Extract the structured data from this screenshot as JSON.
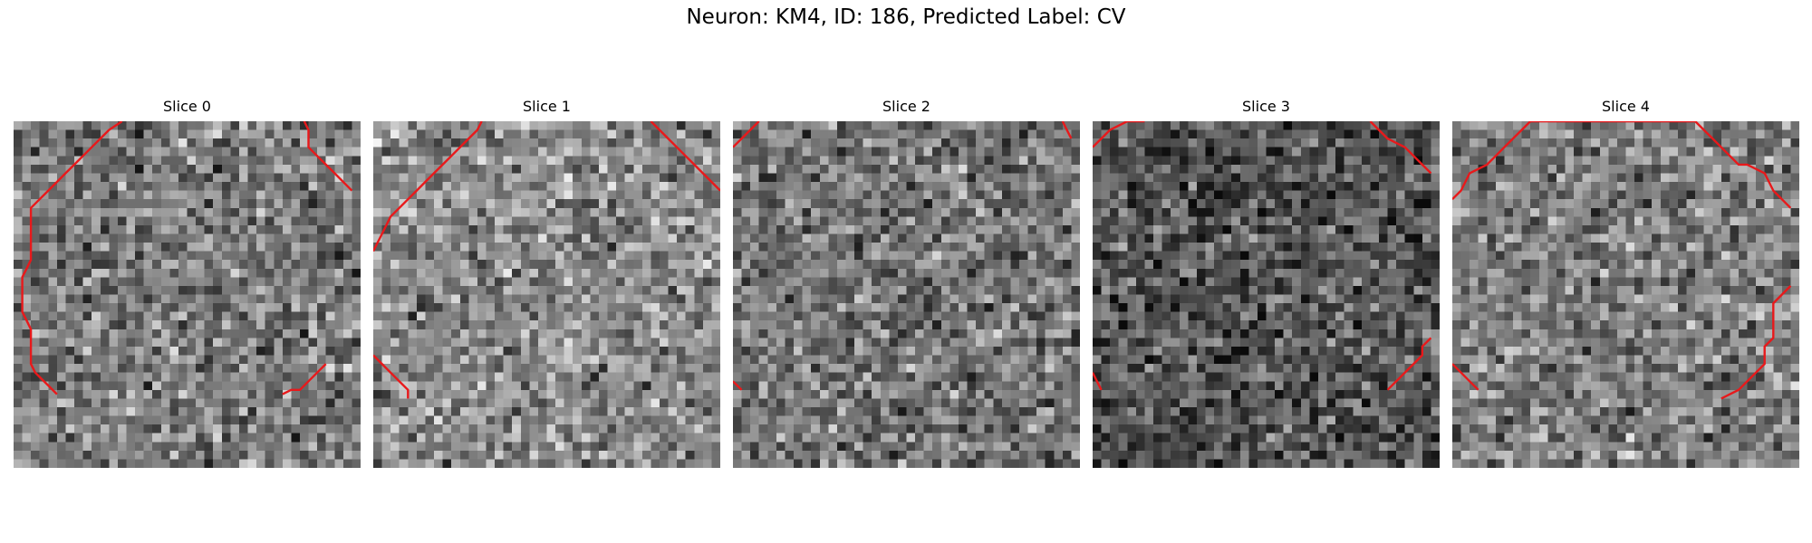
{
  "figure": {
    "title": "Neuron: KM4, ID: 186, Predicted Label: CV"
  },
  "colors": {
    "contour": "#e8191b",
    "background": "#ffffff"
  },
  "slices": [
    {
      "label": "Slice 0",
      "mean_brightness": 0.48,
      "contours": [
        [
          [
            12.5,
            0
          ],
          [
            11,
            1
          ],
          [
            10,
            2
          ],
          [
            9,
            3
          ],
          [
            8,
            4
          ],
          [
            7,
            5
          ],
          [
            6,
            6
          ],
          [
            5,
            7
          ],
          [
            4,
            8
          ],
          [
            3,
            9
          ],
          [
            2,
            10
          ],
          [
            2,
            12
          ],
          [
            2,
            14
          ],
          [
            2,
            16
          ],
          [
            1.5,
            17
          ],
          [
            1,
            18
          ],
          [
            1,
            20
          ],
          [
            1,
            22
          ],
          [
            1.5,
            23
          ],
          [
            2,
            24
          ],
          [
            2,
            26
          ],
          [
            2,
            28
          ],
          [
            2.5,
            29
          ],
          [
            3,
            29.5
          ],
          [
            4,
            30.5
          ],
          [
            5,
            31.5
          ]
        ],
        [
          [
            33.5,
            0
          ],
          [
            34,
            1
          ],
          [
            34,
            2
          ],
          [
            34,
            3
          ],
          [
            35,
            4
          ],
          [
            36,
            5
          ],
          [
            37,
            6
          ],
          [
            38,
            7
          ],
          [
            39,
            8
          ]
        ],
        [
          [
            31,
            31.5
          ],
          [
            32,
            31
          ],
          [
            33,
            31
          ],
          [
            34,
            30
          ],
          [
            35,
            29
          ],
          [
            36,
            28
          ]
        ]
      ]
    },
    {
      "label": "Slice 1",
      "mean_brightness": 0.55,
      "contours": [
        [
          [
            12.5,
            0
          ],
          [
            12,
            1
          ],
          [
            11,
            2
          ],
          [
            10,
            3
          ],
          [
            9,
            4
          ],
          [
            8,
            5
          ],
          [
            7,
            6
          ],
          [
            6,
            7
          ],
          [
            5,
            8
          ],
          [
            4,
            9
          ],
          [
            3,
            10
          ],
          [
            2,
            11
          ],
          [
            1.5,
            12
          ],
          [
            1,
            13
          ],
          [
            0.5,
            14
          ],
          [
            0,
            15
          ]
        ],
        [
          [
            32,
            0
          ],
          [
            33,
            1
          ],
          [
            34,
            2
          ],
          [
            35,
            3
          ],
          [
            36,
            4
          ],
          [
            37,
            5
          ],
          [
            38,
            6
          ],
          [
            39,
            7
          ],
          [
            40,
            8
          ]
        ],
        [
          [
            0,
            27
          ],
          [
            1,
            28
          ],
          [
            2,
            29
          ],
          [
            3,
            30
          ],
          [
            4,
            31
          ],
          [
            4,
            32
          ]
        ]
      ]
    },
    {
      "label": "Slice 2",
      "mean_brightness": 0.46,
      "contours": [
        [
          [
            3,
            0
          ],
          [
            2,
            1
          ],
          [
            1,
            2
          ],
          [
            0,
            3
          ]
        ],
        [
          [
            38,
            0
          ],
          [
            38.5,
            1
          ],
          [
            39,
            2
          ]
        ],
        [
          [
            0,
            30
          ],
          [
            1,
            31
          ]
        ]
      ]
    },
    {
      "label": "Slice 3",
      "mean_brightness": 0.33,
      "contours": [
        [
          [
            0,
            3
          ],
          [
            1,
            2
          ],
          [
            2,
            1
          ],
          [
            3,
            0.5
          ],
          [
            4,
            0
          ],
          [
            6,
            0
          ]
        ],
        [
          [
            32,
            0
          ],
          [
            33,
            1
          ],
          [
            34,
            2
          ],
          [
            35,
            2.5
          ],
          [
            36,
            3
          ],
          [
            37,
            4
          ],
          [
            38,
            5
          ],
          [
            39,
            6
          ]
        ],
        [
          [
            34,
            31
          ],
          [
            35,
            30
          ],
          [
            36,
            29
          ],
          [
            37,
            28
          ],
          [
            38,
            27
          ],
          [
            38,
            26
          ],
          [
            39,
            25
          ]
        ],
        [
          [
            0,
            29
          ],
          [
            0.5,
            30
          ],
          [
            1,
            31
          ]
        ]
      ]
    },
    {
      "label": "Slice 4",
      "mean_brightness": 0.5,
      "contours": [
        [
          [
            9,
            0
          ],
          [
            28,
            0
          ],
          [
            29,
            1
          ],
          [
            30,
            2
          ],
          [
            31,
            3
          ],
          [
            32,
            4
          ],
          [
            33,
            5
          ],
          [
            34,
            5
          ],
          [
            35,
            5.5
          ],
          [
            36,
            6
          ],
          [
            36.5,
            7
          ],
          [
            37,
            8
          ],
          [
            38,
            9
          ],
          [
            39,
            10
          ]
        ],
        [
          [
            9,
            0
          ],
          [
            8,
            1
          ],
          [
            7,
            2
          ],
          [
            6,
            3
          ],
          [
            5,
            4
          ],
          [
            4,
            5
          ],
          [
            3,
            5.5
          ],
          [
            2,
            6
          ],
          [
            1.5,
            7
          ],
          [
            1,
            8
          ],
          [
            0,
            9
          ]
        ],
        [
          [
            39,
            19
          ],
          [
            38,
            20
          ],
          [
            37,
            21
          ],
          [
            37,
            23
          ],
          [
            37,
            25
          ],
          [
            36,
            26
          ],
          [
            36,
            28
          ],
          [
            35,
            29
          ],
          [
            34,
            30
          ],
          [
            33,
            31
          ],
          [
            32,
            31.5
          ],
          [
            31,
            32
          ]
        ],
        [
          [
            0,
            28
          ],
          [
            1,
            29
          ],
          [
            2,
            30
          ],
          [
            3,
            31
          ]
        ]
      ]
    }
  ]
}
